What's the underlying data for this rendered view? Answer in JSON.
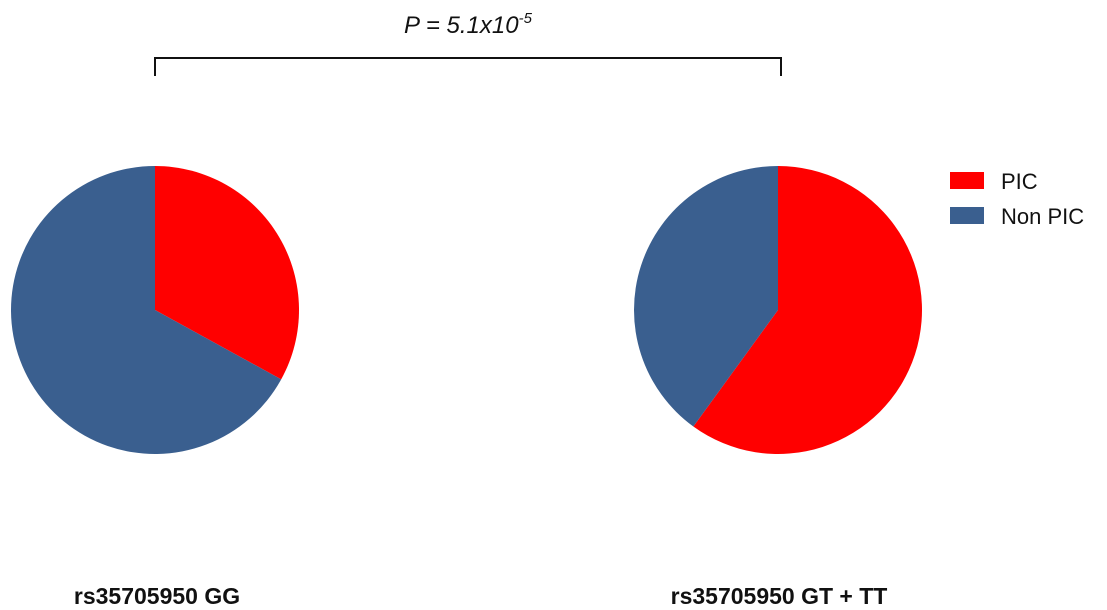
{
  "chart_data": {
    "type": "pie",
    "annotation": {
      "prefix": "P",
      "equals": " = ",
      "mantissa": "5.1x10",
      "exponent": "-5"
    },
    "legend": {
      "placement": "right",
      "entries": [
        {
          "label": "PIC",
          "color": "#ff0000"
        },
        {
          "label": "Non PIC",
          "color": "#3a5f8f"
        }
      ]
    },
    "pies": [
      {
        "label": "rs35705950 GG",
        "slices": [
          {
            "name": "PIC",
            "value": 33,
            "color": "#ff0000"
          },
          {
            "name": "Non PIC",
            "value": 67,
            "color": "#3a5f8f"
          }
        ]
      },
      {
        "label": "rs35705950 GT + TT",
        "slices": [
          {
            "name": "PIC",
            "value": 60,
            "color": "#ff0000"
          },
          {
            "name": "Non PIC",
            "value": 40,
            "color": "#3a5f8f"
          }
        ]
      }
    ]
  }
}
